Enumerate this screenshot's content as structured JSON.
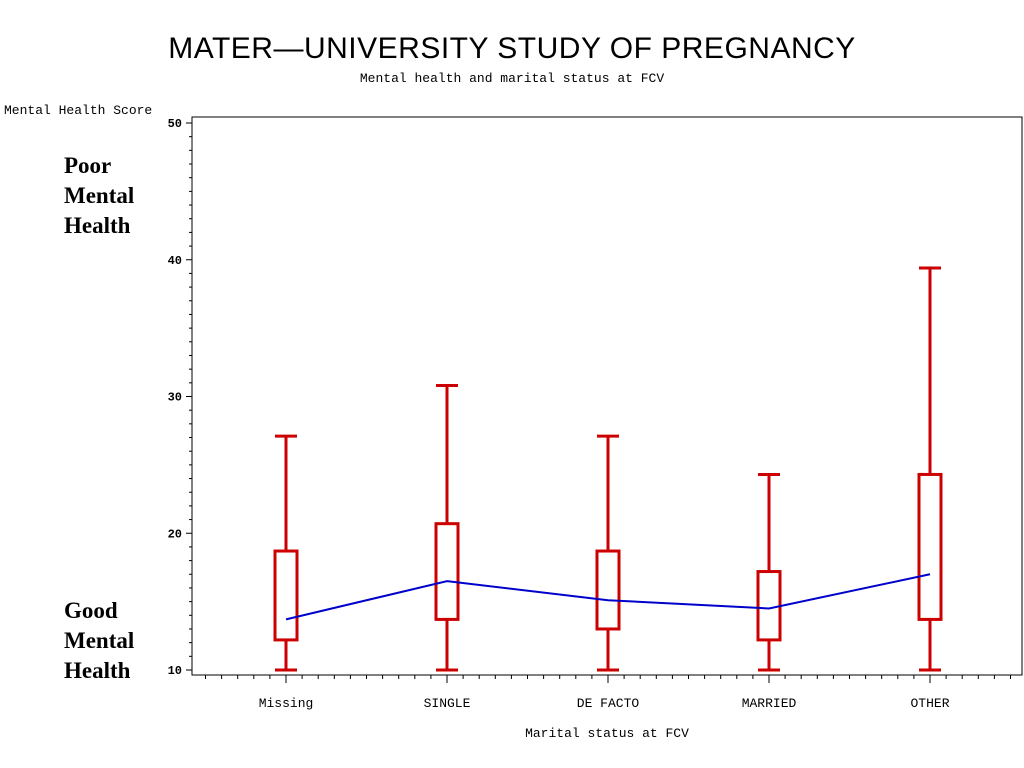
{
  "chart_data": {
    "type": "boxplot",
    "title": "MATER—UNIVERSITY STUDY OF PREGNANCY",
    "subtitle": "Mental health and marital status at FCV",
    "ylabel": "Mental Health Score",
    "xlabel": "Marital status at FCV",
    "ylim": [
      10,
      50
    ],
    "yticks": [
      10,
      20,
      30,
      40,
      50
    ],
    "categories": [
      "Missing",
      "SINGLE",
      "DE FACTO",
      "MARRIED",
      "OTHER"
    ],
    "boxes": [
      {
        "category": "Missing",
        "min": 10,
        "q1": 12.2,
        "q3": 18.7,
        "max": 27.1,
        "mean": 13.7
      },
      {
        "category": "SINGLE",
        "min": 10,
        "q1": 13.7,
        "q3": 20.7,
        "max": 30.8,
        "mean": 16.5
      },
      {
        "category": "DE FACTO",
        "min": 10,
        "q1": 13.0,
        "q3": 18.7,
        "max": 27.1,
        "mean": 15.1
      },
      {
        "category": "MARRIED",
        "min": 10,
        "q1": 12.2,
        "q3": 17.2,
        "max": 24.3,
        "mean": 14.5
      },
      {
        "category": "OTHER",
        "min": 10,
        "q1": 13.7,
        "q3": 24.3,
        "max": 39.4,
        "mean": 17.0
      }
    ],
    "box_color": "#cc0000",
    "mean_line_color": "#0000cc",
    "grid": false
  },
  "annotations": {
    "poor": [
      "Poor",
      "Mental",
      "Health"
    ],
    "good": [
      "Good",
      "Mental",
      "Health"
    ]
  }
}
